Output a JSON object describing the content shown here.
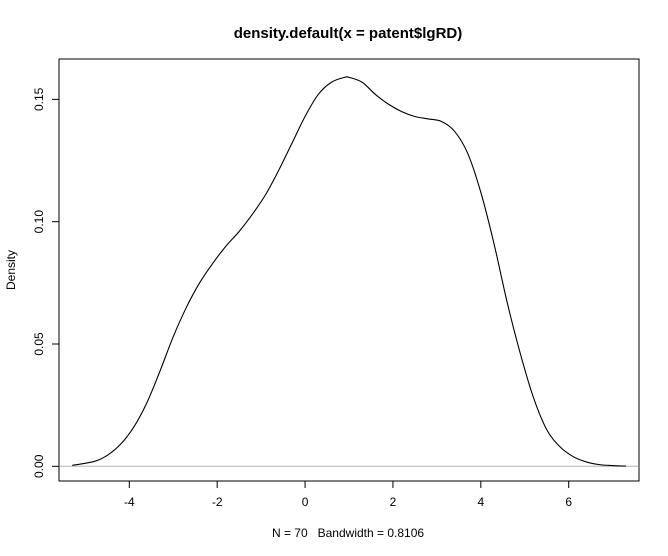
{
  "chart_data": {
    "type": "line",
    "title": "density.default(x = patent$lgRD)",
    "xlabel": "N = 70   Bandwidth = 0.8106",
    "ylabel": "Density",
    "xlim": [
      -5.6,
      7.6
    ],
    "ylim": [
      -0.006,
      0.1665
    ],
    "x_ticks": [
      -4,
      -2,
      0,
      2,
      4,
      6
    ],
    "x_tick_labels": [
      "-4",
      "-2",
      "0",
      "2",
      "4",
      "6"
    ],
    "y_ticks": [
      0.0,
      0.05,
      0.1,
      0.15
    ],
    "y_tick_labels": [
      "0.00",
      "0.05",
      "0.10",
      "0.15"
    ],
    "baseline": {
      "y": 0,
      "color": "#c8c8c8"
    },
    "line_color": "#000000",
    "grid": false,
    "series": [
      {
        "x": [
          -5.3,
          -4.8,
          -4.5,
          -4.2,
          -3.9,
          -3.6,
          -3.3,
          -3.0,
          -2.7,
          -2.4,
          -2.1,
          -1.8,
          -1.5,
          -1.2,
          -0.9,
          -0.6,
          -0.3,
          0.0,
          0.3,
          0.6,
          0.9,
          1.0,
          1.3,
          1.6,
          1.9,
          2.2,
          2.5,
          2.8,
          3.1,
          3.4,
          3.7,
          4.0,
          4.3,
          4.6,
          4.9,
          5.2,
          5.5,
          5.8,
          6.1,
          6.4,
          6.7,
          7.0,
          7.3
        ],
        "y": [
          0.0004,
          0.002,
          0.0045,
          0.009,
          0.016,
          0.026,
          0.039,
          0.053,
          0.065,
          0.075,
          0.083,
          0.09,
          0.096,
          0.103,
          0.111,
          0.121,
          0.132,
          0.143,
          0.152,
          0.157,
          0.159,
          0.159,
          0.157,
          0.152,
          0.148,
          0.145,
          0.143,
          0.142,
          0.141,
          0.137,
          0.128,
          0.112,
          0.091,
          0.067,
          0.046,
          0.028,
          0.015,
          0.008,
          0.004,
          0.0018,
          0.0007,
          0.0003,
          0.0001
        ]
      }
    ]
  }
}
